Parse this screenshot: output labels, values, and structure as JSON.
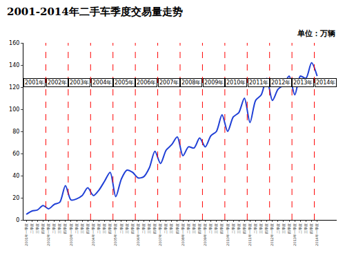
{
  "chart_data": {
    "type": "line",
    "title": "2001-2014年二手车季度交易量走势",
    "y_label": "单位：万辆",
    "annotations": [
      "2001年",
      "2002年",
      "2003年",
      "2004年",
      "2005年",
      "2006年",
      "2007年",
      "2008年",
      "2009年",
      "2010年",
      "2011年",
      "2012年",
      "2013年",
      "2014年"
    ],
    "categories": [
      "2001年一季度",
      "二季度",
      "三季度",
      "四季度",
      "2002年一季度",
      "二季度",
      "三季度",
      "四季度",
      "2003年一季度",
      "二季度",
      "三季度",
      "四季度",
      "2004年一季度",
      "二季度",
      "三季度",
      "四季度",
      "2005年一季度",
      "二季度",
      "三季度",
      "四季度",
      "2006年一季度",
      "二季度",
      "三季度",
      "四季度",
      "2007年一季度",
      "二季度",
      "三季度",
      "四季度",
      "2008年一季度",
      "二季度",
      "三季度",
      "四季度",
      "2009年一季度",
      "二季度",
      "三季度",
      "四季度",
      "2010年一季度",
      "二季度",
      "三季度",
      "四季度",
      "2011年一季度",
      "二季度",
      "三季度",
      "四季度",
      "2012年一季度",
      "二季度",
      "三季度",
      "四季度",
      "2013年一季度",
      "二季度",
      "三季度",
      "四季度",
      "2014年一季度"
    ],
    "values": [
      5,
      8,
      9,
      13,
      10,
      14,
      16,
      31,
      18,
      19,
      22,
      29,
      22,
      27,
      35,
      43,
      21,
      37,
      45,
      43,
      38,
      39,
      47,
      62,
      51,
      63,
      68,
      75,
      58,
      66,
      65,
      74,
      66,
      76,
      80,
      95,
      80,
      93,
      97,
      110,
      88,
      108,
      113,
      128,
      108,
      118,
      122,
      130,
      113,
      130,
      128,
      142,
      130
    ],
    "color": "#1f3fd6",
    "line_style": "solid",
    "ylim": [
      0,
      160
    ],
    "yticks": [
      0,
      20,
      40,
      60,
      80,
      100,
      120,
      140,
      160
    ],
    "grid": false
  }
}
